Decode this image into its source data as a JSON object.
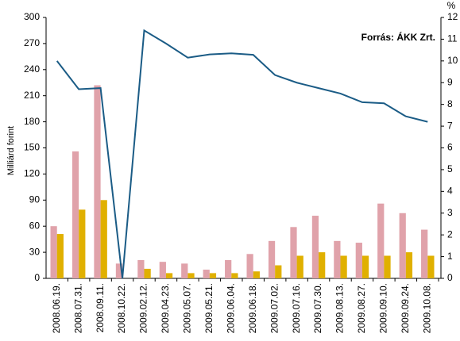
{
  "chart_data": {
    "type": "bar_line",
    "annotation": "Forrás:  ÁKK Zrt.",
    "y_label": "Milliárd forint",
    "y2_label": "%",
    "categories": [
      "2008.06.19.",
      "2008.07.31.",
      "2008.09.11.",
      "2008.10.22.",
      "2009.02.12.",
      "2009.04.23.",
      "2009.05.07.",
      "2009.05.21.",
      "2009.06.04.",
      "2009.06.18.",
      "2009.07.02.",
      "2009.07.16.",
      "2009.07.30.",
      "2009.08.13.",
      "2009.08.27.",
      "2009.09.10.",
      "2009.09.24.",
      "2009.10.08."
    ],
    "series": [
      {
        "color": "#e0a2aa",
        "values": [
          60,
          146,
          222,
          17,
          21,
          19,
          17,
          10,
          21,
          28,
          43,
          59,
          72,
          43,
          41,
          86,
          75,
          56
        ]
      },
      {
        "color": "#e0b000",
        "values": [
          51,
          79,
          90,
          0,
          11,
          6,
          6,
          6,
          6,
          8,
          15,
          26,
          30,
          26,
          26,
          26,
          30,
          26
        ]
      },
      {
        "color": "#1b5c86",
        "axis": "y2",
        "type": "line",
        "values": [
          10.0,
          8.7,
          8.75,
          0,
          11.4,
          10.8,
          10.15,
          10.3,
          10.35,
          10.28,
          9.35,
          9.0,
          8.75,
          8.5,
          8.1,
          8.05,
          7.45,
          7.2
        ]
      }
    ],
    "ylim": [
      0,
      300
    ],
    "yticks": [
      0,
      30,
      60,
      90,
      120,
      150,
      180,
      210,
      240,
      270,
      300
    ],
    "y2lim": [
      0,
      12
    ],
    "y2ticks": [
      0,
      1,
      2,
      3,
      4,
      5,
      6,
      7,
      8,
      9,
      10,
      11,
      12
    ]
  }
}
